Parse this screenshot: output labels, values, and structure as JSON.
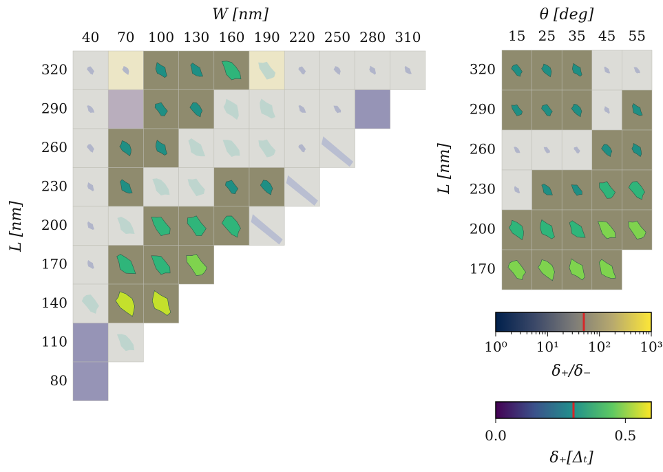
{
  "palette": {
    "bg_gray": "#dcdcd7",
    "bg_olive": "#8f8b6e",
    "bg_olive_light": "#a39b6a",
    "bg_cream": "#ece6c6",
    "bg_mauve": "#b9aebd",
    "bg_purple": "#9694b6",
    "marker_red": "#d62728"
  },
  "chart_data": [
    {
      "type": "heatmap",
      "xlabel": "W [nm]",
      "ylabel": "L [nm]",
      "x_ticks": [
        "40",
        "70",
        "100",
        "130",
        "160",
        "190",
        "220",
        "250",
        "280",
        "310"
      ],
      "y_ticks": [
        "320",
        "290",
        "260",
        "230",
        "200",
        "170",
        "140",
        "110",
        "80"
      ],
      "cells": [
        {
          "L": 320,
          "W": 40,
          "bg": "gray",
          "shape": "small"
        },
        {
          "L": 320,
          "W": 70,
          "bg": "cream",
          "shape": "small"
        },
        {
          "L": 320,
          "W": 100,
          "bg": "olive",
          "shape": "blob",
          "fill": "teal"
        },
        {
          "L": 320,
          "W": 130,
          "bg": "olive",
          "shape": "blob",
          "fill": "teal"
        },
        {
          "L": 320,
          "W": 160,
          "bg": "olive",
          "shape": "blob",
          "fill": "green"
        },
        {
          "L": 320,
          "W": 190,
          "bg": "cream",
          "shape": "large"
        },
        {
          "L": 320,
          "W": 220,
          "bg": "gray",
          "shape": "small"
        },
        {
          "L": 320,
          "W": 250,
          "bg": "gray",
          "shape": "small"
        },
        {
          "L": 320,
          "W": 280,
          "bg": "gray",
          "shape": "small"
        },
        {
          "L": 320,
          "W": 310,
          "bg": "gray",
          "shape": "small"
        },
        {
          "L": 290,
          "W": 40,
          "bg": "gray",
          "shape": "small"
        },
        {
          "L": 290,
          "W": 70,
          "bg": "mauve",
          "shape": "none"
        },
        {
          "L": 290,
          "W": 100,
          "bg": "olive",
          "shape": "blob",
          "fill": "teal"
        },
        {
          "L": 290,
          "W": 130,
          "bg": "olive",
          "shape": "blob",
          "fill": "teal"
        },
        {
          "L": 290,
          "W": 160,
          "bg": "gray",
          "shape": "large"
        },
        {
          "L": 290,
          "W": 190,
          "bg": "gray",
          "shape": "large"
        },
        {
          "L": 290,
          "W": 220,
          "bg": "gray",
          "shape": "small"
        },
        {
          "L": 290,
          "W": 250,
          "bg": "gray",
          "shape": "small"
        },
        {
          "L": 290,
          "W": 280,
          "bg": "purple",
          "shape": "none"
        },
        {
          "L": 260,
          "W": 40,
          "bg": "gray",
          "shape": "small"
        },
        {
          "L": 260,
          "W": 70,
          "bg": "olive",
          "shape": "blob",
          "fill": "teal"
        },
        {
          "L": 260,
          "W": 100,
          "bg": "olive",
          "shape": "blob",
          "fill": "teal"
        },
        {
          "L": 260,
          "W": 130,
          "bg": "gray",
          "shape": "large"
        },
        {
          "L": 260,
          "W": 160,
          "bg": "gray",
          "shape": "large"
        },
        {
          "L": 260,
          "W": 190,
          "bg": "gray",
          "shape": "large"
        },
        {
          "L": 260,
          "W": 220,
          "bg": "gray",
          "shape": "small"
        },
        {
          "L": 260,
          "W": 250,
          "bg": "gray",
          "shape": "streak"
        },
        {
          "L": 230,
          "W": 40,
          "bg": "gray",
          "shape": "small"
        },
        {
          "L": 230,
          "W": 70,
          "bg": "olive",
          "shape": "blob",
          "fill": "teal"
        },
        {
          "L": 230,
          "W": 100,
          "bg": "gray",
          "shape": "large"
        },
        {
          "L": 230,
          "W": 130,
          "bg": "gray",
          "shape": "large"
        },
        {
          "L": 230,
          "W": 160,
          "bg": "olive",
          "shape": "blob",
          "fill": "teal"
        },
        {
          "L": 230,
          "W": 190,
          "bg": "olive",
          "shape": "blob",
          "fill": "teal"
        },
        {
          "L": 230,
          "W": 220,
          "bg": "gray",
          "shape": "streak"
        },
        {
          "L": 200,
          "W": 40,
          "bg": "gray",
          "shape": "small"
        },
        {
          "L": 200,
          "W": 70,
          "bg": "gray",
          "shape": "large"
        },
        {
          "L": 200,
          "W": 100,
          "bg": "olive",
          "shape": "blob",
          "fill": "green"
        },
        {
          "L": 200,
          "W": 130,
          "bg": "olive",
          "shape": "blob",
          "fill": "green"
        },
        {
          "L": 200,
          "W": 160,
          "bg": "olive",
          "shape": "blob",
          "fill": "green"
        },
        {
          "L": 200,
          "W": 190,
          "bg": "gray",
          "shape": "streak"
        },
        {
          "L": 170,
          "W": 40,
          "bg": "gray",
          "shape": "small"
        },
        {
          "L": 170,
          "W": 70,
          "bg": "olive",
          "shape": "blob",
          "fill": "green"
        },
        {
          "L": 170,
          "W": 100,
          "bg": "olive",
          "shape": "blob",
          "fill": "green"
        },
        {
          "L": 170,
          "W": 130,
          "bg": "olive",
          "shape": "blob",
          "fill": "lime"
        },
        {
          "L": 140,
          "W": 40,
          "bg": "gray",
          "shape": "large"
        },
        {
          "L": 140,
          "W": 70,
          "bg": "olive",
          "shape": "blob",
          "fill": "yellow"
        },
        {
          "L": 140,
          "W": 100,
          "bg": "olive",
          "shape": "blob",
          "fill": "yellow"
        },
        {
          "L": 110,
          "W": 40,
          "bg": "purple",
          "shape": "none"
        },
        {
          "L": 110,
          "W": 70,
          "bg": "gray",
          "shape": "large"
        },
        {
          "L": 80,
          "W": 40,
          "bg": "purple",
          "shape": "none"
        }
      ]
    },
    {
      "type": "heatmap",
      "xlabel": "θ [deg]",
      "ylabel": "L [nm]",
      "x_ticks": [
        "15",
        "25",
        "35",
        "45",
        "55"
      ],
      "y_ticks": [
        "320",
        "290",
        "260",
        "230",
        "200",
        "170"
      ],
      "cells": [
        {
          "L": 320,
          "theta": 15,
          "bg": "olive",
          "shape": "blob",
          "fill": "teal"
        },
        {
          "L": 320,
          "theta": 25,
          "bg": "olive",
          "shape": "blob",
          "fill": "teal"
        },
        {
          "L": 320,
          "theta": 35,
          "bg": "olive",
          "shape": "blob",
          "fill": "teal"
        },
        {
          "L": 320,
          "theta": 45,
          "bg": "gray",
          "shape": "small"
        },
        {
          "L": 320,
          "theta": 55,
          "bg": "gray",
          "shape": "small"
        },
        {
          "L": 290,
          "theta": 15,
          "bg": "olive",
          "shape": "blob",
          "fill": "teal"
        },
        {
          "L": 290,
          "theta": 25,
          "bg": "olive",
          "shape": "blob",
          "fill": "teal"
        },
        {
          "L": 290,
          "theta": 35,
          "bg": "olive",
          "shape": "blob",
          "fill": "teal"
        },
        {
          "L": 290,
          "theta": 45,
          "bg": "gray",
          "shape": "small"
        },
        {
          "L": 290,
          "theta": 55,
          "bg": "olive",
          "shape": "blob",
          "fill": "teal"
        },
        {
          "L": 260,
          "theta": 15,
          "bg": "gray",
          "shape": "small"
        },
        {
          "L": 260,
          "theta": 25,
          "bg": "gray",
          "shape": "small"
        },
        {
          "L": 260,
          "theta": 35,
          "bg": "gray",
          "shape": "small"
        },
        {
          "L": 260,
          "theta": 45,
          "bg": "olive",
          "shape": "blob",
          "fill": "teal"
        },
        {
          "L": 260,
          "theta": 55,
          "bg": "olive",
          "shape": "blob",
          "fill": "teal"
        },
        {
          "L": 230,
          "theta": 15,
          "bg": "gray",
          "shape": "small"
        },
        {
          "L": 230,
          "theta": 25,
          "bg": "olive",
          "shape": "blob",
          "fill": "teal"
        },
        {
          "L": 230,
          "theta": 35,
          "bg": "olive",
          "shape": "blob",
          "fill": "teal"
        },
        {
          "L": 230,
          "theta": 45,
          "bg": "olive",
          "shape": "blob",
          "fill": "green"
        },
        {
          "L": 230,
          "theta": 55,
          "bg": "olive",
          "shape": "blob",
          "fill": "green"
        },
        {
          "L": 200,
          "theta": 15,
          "bg": "olive",
          "shape": "blob",
          "fill": "green"
        },
        {
          "L": 200,
          "theta": 25,
          "bg": "olive",
          "shape": "blob",
          "fill": "green"
        },
        {
          "L": 200,
          "theta": 35,
          "bg": "olive",
          "shape": "blob",
          "fill": "green"
        },
        {
          "L": 200,
          "theta": 45,
          "bg": "olive",
          "shape": "blob",
          "fill": "lime"
        },
        {
          "L": 200,
          "theta": 55,
          "bg": "olive",
          "shape": "blob",
          "fill": "lime"
        },
        {
          "L": 170,
          "theta": 15,
          "bg": "olive",
          "shape": "blob",
          "fill": "lime"
        },
        {
          "L": 170,
          "theta": 25,
          "bg": "olive",
          "shape": "blob",
          "fill": "lime"
        },
        {
          "L": 170,
          "theta": 35,
          "bg": "olive",
          "shape": "blob",
          "fill": "lime"
        },
        {
          "L": 170,
          "theta": 45,
          "bg": "olive",
          "shape": "blob",
          "fill": "lime"
        }
      ]
    }
  ],
  "colorbars": [
    {
      "label": "δ₊/δ₋",
      "scale": "log",
      "range": [
        1,
        1000
      ],
      "tick_labels": [
        "10⁰",
        "10¹",
        "10²",
        "10³"
      ],
      "marker_value": 50,
      "stops": [
        "#00204c",
        "#3b4868",
        "#7c7b78",
        "#b7a96e",
        "#fde737"
      ]
    },
    {
      "label": "δ₊[Δₜ]",
      "scale": "linear",
      "range": [
        0,
        0.6
      ],
      "tick_labels": [
        "0.0",
        "0.5"
      ],
      "marker_value": 0.3,
      "stops": [
        "#440154",
        "#3b528b",
        "#21918c",
        "#5ec962",
        "#fde725"
      ]
    }
  ],
  "fill_colors": {
    "teal": "#1f8f84",
    "green": "#2fb57a",
    "lime": "#7fd34e",
    "yellow": "#c4e02c"
  }
}
